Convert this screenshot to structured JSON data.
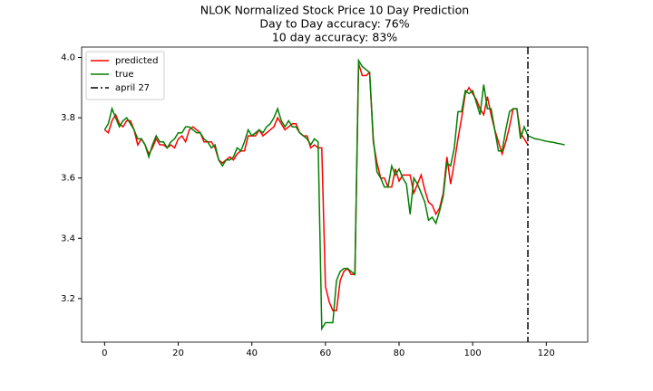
{
  "chart_data": {
    "type": "line",
    "title": "NLOK Normalized Stock Price 10 Day Prediction",
    "subtitle": [
      "Day to Day accuracy: 76%",
      "10 day accuracy: 83%"
    ],
    "x": [
      0,
      1,
      2,
      3,
      4,
      5,
      6,
      7,
      8,
      9,
      10,
      11,
      12,
      13,
      14,
      15,
      16,
      17,
      18,
      19,
      20,
      21,
      22,
      23,
      24,
      25,
      26,
      27,
      28,
      29,
      30,
      31,
      32,
      33,
      34,
      35,
      36,
      37,
      38,
      39,
      40,
      41,
      42,
      43,
      44,
      45,
      46,
      47,
      48,
      49,
      50,
      51,
      52,
      53,
      54,
      55,
      56,
      57,
      58,
      59,
      60,
      61,
      62,
      63,
      64,
      65,
      66,
      67,
      68,
      69,
      70,
      71,
      72,
      73,
      74,
      75,
      76,
      77,
      78,
      79,
      80,
      81,
      82,
      83,
      84,
      85,
      86,
      87,
      88,
      89,
      90,
      91,
      92,
      93,
      94,
      95,
      96,
      97,
      98,
      99,
      100,
      101,
      102,
      103,
      104,
      105,
      106,
      107,
      108,
      109,
      110,
      111,
      112,
      113,
      114,
      115,
      116,
      117,
      118,
      119,
      120,
      121,
      122,
      123,
      124,
      125
    ],
    "series": [
      {
        "name": "predicted",
        "color": "#ff0000",
        "values": [
          3.76,
          3.75,
          3.79,
          3.81,
          3.78,
          3.77,
          3.79,
          3.79,
          3.76,
          3.71,
          3.73,
          3.71,
          3.68,
          3.7,
          3.73,
          3.71,
          3.71,
          3.7,
          3.71,
          3.7,
          3.73,
          3.74,
          3.72,
          3.76,
          3.77,
          3.76,
          3.75,
          3.72,
          3.72,
          3.72,
          3.7,
          3.66,
          3.65,
          3.66,
          3.67,
          3.66,
          3.68,
          3.69,
          3.69,
          3.74,
          3.74,
          3.74,
          3.76,
          3.74,
          3.75,
          3.76,
          3.77,
          3.8,
          3.78,
          3.76,
          3.77,
          3.78,
          3.78,
          3.75,
          3.74,
          3.74,
          3.7,
          3.71,
          3.7,
          3.7,
          3.24,
          3.19,
          3.16,
          3.16,
          3.26,
          3.29,
          3.3,
          3.28,
          3.28,
          3.98,
          3.94,
          3.94,
          3.95,
          3.72,
          3.65,
          3.6,
          3.6,
          3.57,
          3.57,
          3.63,
          3.59,
          3.61,
          3.61,
          3.61,
          3.55,
          3.58,
          3.61,
          3.56,
          3.52,
          3.51,
          3.48,
          3.5,
          3.55,
          3.67,
          3.58,
          3.65,
          3.73,
          3.8,
          3.88,
          3.9,
          3.88,
          3.86,
          3.83,
          3.81,
          3.87,
          3.81,
          3.76,
          3.72,
          3.68,
          3.72,
          3.77,
          3.83,
          3.83,
          3.75,
          3.73,
          3.71,
          null,
          null,
          null,
          null,
          null,
          null,
          null,
          null,
          null,
          null
        ]
      },
      {
        "name": "true",
        "color": "#008000",
        "values": [
          3.76,
          3.78,
          3.83,
          3.8,
          3.77,
          3.79,
          3.8,
          3.78,
          3.76,
          3.73,
          3.73,
          3.71,
          3.67,
          3.71,
          3.74,
          3.72,
          3.72,
          3.7,
          3.72,
          3.73,
          3.75,
          3.75,
          3.77,
          3.77,
          3.76,
          3.75,
          3.75,
          3.73,
          3.72,
          3.7,
          3.71,
          3.66,
          3.64,
          3.66,
          3.66,
          3.67,
          3.7,
          3.69,
          3.72,
          3.76,
          3.74,
          3.75,
          3.76,
          3.75,
          3.77,
          3.78,
          3.8,
          3.83,
          3.79,
          3.77,
          3.79,
          3.77,
          3.77,
          3.75,
          3.74,
          3.73,
          3.71,
          3.73,
          3.72,
          3.1,
          3.12,
          3.12,
          3.12,
          3.26,
          3.29,
          3.3,
          3.3,
          3.29,
          3.28,
          3.99,
          3.97,
          3.96,
          3.95,
          3.73,
          3.62,
          3.6,
          3.57,
          3.57,
          3.64,
          3.61,
          3.63,
          3.6,
          3.58,
          3.48,
          3.6,
          3.58,
          3.55,
          3.52,
          3.46,
          3.47,
          3.45,
          3.49,
          3.54,
          3.65,
          3.64,
          3.7,
          3.82,
          3.82,
          3.89,
          3.88,
          3.89,
          3.85,
          3.81,
          3.91,
          3.83,
          3.83,
          3.76,
          3.69,
          3.69,
          3.76,
          3.82,
          3.83,
          3.83,
          3.73,
          3.77,
          3.74,
          3.735,
          3.73,
          3.728,
          3.725,
          3.722,
          3.72,
          3.718,
          3.715,
          3.713,
          3.71
        ]
      }
    ],
    "vlines": [
      {
        "x": 115,
        "name": "april 27",
        "color": "#000000",
        "style": "dashdot"
      }
    ],
    "xlim": [
      -6.25,
      131.25
    ],
    "xticks": [
      0,
      20,
      40,
      60,
      80,
      100,
      120
    ],
    "ylim": [
      3.0555,
      4.0345
    ],
    "yticks": [
      3.2,
      3.4,
      3.6,
      3.8,
      {
        "value": 4,
        "label": "4.0"
      }
    ],
    "legend": "upper left",
    "grid": false
  }
}
